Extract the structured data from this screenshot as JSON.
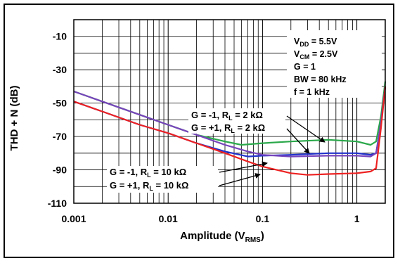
{
  "chart_data": {
    "type": "line",
    "xscale": "log",
    "xlim": [
      0.001,
      2
    ],
    "ylim": [
      -110,
      0
    ],
    "xticks": [
      "0.001",
      "0.01",
      "0.1",
      "1"
    ],
    "yticks": [
      "-10",
      "-30",
      "-50",
      "-70",
      "-90",
      "-110"
    ],
    "ytick_values": [
      -10,
      -30,
      -50,
      -70,
      -90,
      -110
    ],
    "xtick_values": [
      0.001,
      0.01,
      0.1,
      1
    ],
    "xlabel_main": "Amplitude (V",
    "xlabel_sub": "RMS",
    "xlabel_end": ")",
    "ylabel": "THD + N (dB)",
    "grid": true,
    "conditions": [
      {
        "main": "V",
        "sub": "DD",
        "rest": " = 5.5V"
      },
      {
        "main": "V",
        "sub": "CM",
        "rest": " = 2.5V"
      },
      {
        "main": "G = 1",
        "sub": "",
        "rest": ""
      },
      {
        "main": "BW = 80 kHz",
        "sub": "",
        "rest": ""
      },
      {
        "main": "f = 1 kHz",
        "sub": "",
        "rest": ""
      }
    ],
    "annotations": [
      {
        "pre": "G = -1, R",
        "sub": "L",
        "post": " = 2 kΩ"
      },
      {
        "pre": "G = +1, R",
        "sub": "L",
        "post": " = 2 kΩ"
      },
      {
        "pre": "G = -1, R",
        "sub": "L",
        "post": " = 10 kΩ"
      },
      {
        "pre": "G = +1, R",
        "sub": "L",
        "post": " = 10 kΩ"
      }
    ],
    "series": [
      {
        "color": "#2aa84a",
        "x": [
          0.001,
          0.002,
          0.005,
          0.01,
          0.02,
          0.04,
          0.06,
          0.1,
          0.2,
          0.5,
          1,
          1.4,
          1.6,
          1.8,
          2
        ],
        "y": [
          -43,
          -49,
          -57,
          -63,
          -69,
          -73,
          -75,
          -74,
          -73,
          -72,
          -73,
          -75,
          -73,
          -58,
          -37
        ]
      },
      {
        "color": "#2233cc",
        "x": [
          0.001,
          0.002,
          0.005,
          0.01,
          0.02,
          0.04,
          0.07,
          0.1,
          0.2,
          0.5,
          1,
          1.4,
          1.6,
          1.8,
          2
        ],
        "y": [
          -49,
          -55,
          -63,
          -68,
          -74,
          -79,
          -82,
          -81.5,
          -81,
          -80,
          -80,
          -81,
          -80,
          -62,
          -40
        ]
      },
      {
        "color": "#7744bb",
        "x": [
          0.001,
          0.002,
          0.005,
          0.01,
          0.02,
          0.04,
          0.07,
          0.1,
          0.2,
          0.5,
          1,
          1.4,
          1.6,
          1.8,
          2
        ],
        "y": [
          -43,
          -49,
          -57,
          -63,
          -69,
          -75,
          -79,
          -81,
          -82,
          -81.5,
          -81.5,
          -82,
          -80,
          -62,
          -40
        ]
      },
      {
        "color": "#ee2222",
        "x": [
          0.001,
          0.002,
          0.005,
          0.01,
          0.02,
          0.04,
          0.07,
          0.1,
          0.2,
          0.3,
          0.5,
          1,
          1.4,
          1.6,
          1.8,
          2
        ],
        "y": [
          -49,
          -55,
          -63,
          -68,
          -74,
          -80,
          -85,
          -88,
          -92,
          -93,
          -92.5,
          -92,
          -91,
          -89,
          -65,
          -40
        ]
      }
    ]
  }
}
